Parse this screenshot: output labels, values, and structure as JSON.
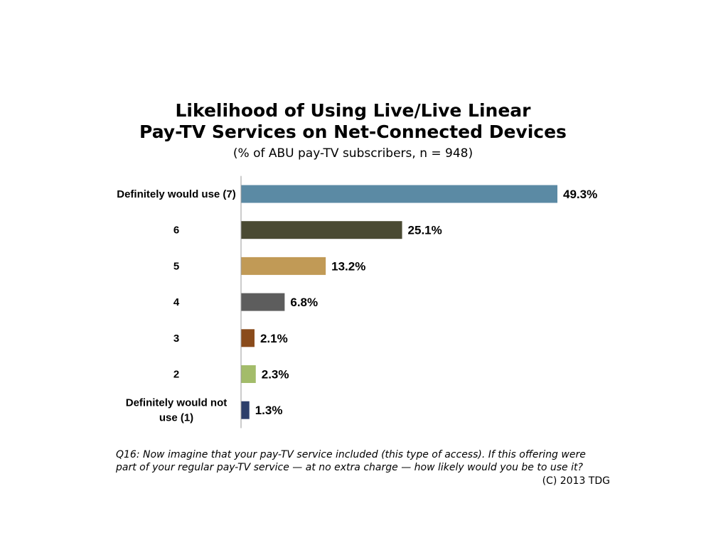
{
  "chart_data": {
    "type": "bar",
    "orientation": "horizontal",
    "title_lines": [
      "Likelihood of Using Live/Live Linear",
      "Pay-TV Services on Net-Connected Devices"
    ],
    "subtitle": "(% of ABU pay-TV subscribers, n = 948)",
    "categories": [
      "Definitely would use (7)",
      "6",
      "5",
      "4",
      "3",
      "2",
      "Definitely would not use (1)"
    ],
    "category_label_lines": [
      [
        "Definitely would use (7)"
      ],
      [
        "6"
      ],
      [
        "5"
      ],
      [
        "4"
      ],
      [
        "3"
      ],
      [
        "2"
      ],
      [
        "Definitely would not",
        "use (1)"
      ]
    ],
    "values": [
      49.3,
      25.1,
      13.2,
      6.8,
      2.1,
      2.3,
      1.3
    ],
    "value_labels": [
      "49.3%",
      "25.1%",
      "13.2%",
      "6.8%",
      "2.1%",
      "2.3%",
      "1.3%"
    ],
    "colors": [
      "#5b8aa4",
      "#4a4a33",
      "#c19a56",
      "#5d5d5d",
      "#8a4b1b",
      "#a3bc6a",
      "#2d3f6b"
    ],
    "unit": "%",
    "grid": false,
    "legend": "none"
  },
  "footnote_lines": [
    "Q16: Now imagine that your pay-TV service included (this type of access). If this offering were",
    "part of your regular pay-TV service — at no extra charge — how likely would you be to use it?"
  ],
  "copyright": "(C) 2013 TDG"
}
